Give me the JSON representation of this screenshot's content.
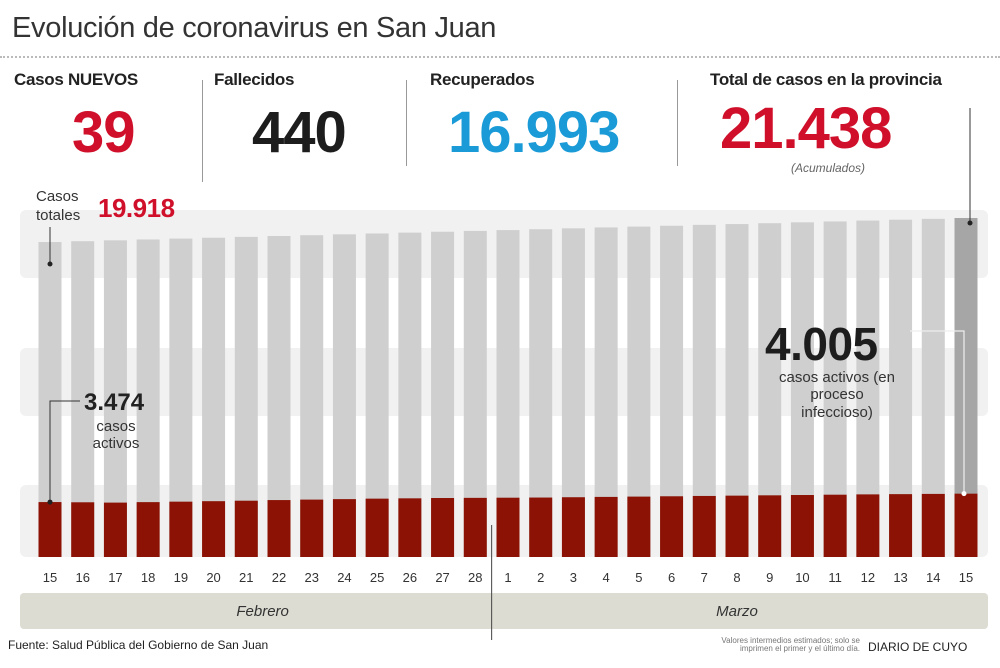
{
  "title": "Evolución de coronavirus en San Juan",
  "stats": {
    "nuevos": {
      "label": "Casos NUEVOS",
      "value": "39"
    },
    "fallecidos": {
      "label": "Fallecidos",
      "value": "440"
    },
    "recuperados": {
      "label": "Recuperados",
      "value": "16.993"
    },
    "total": {
      "label": "Total de casos en la provincia",
      "value": "21.438",
      "note": "(Acumulados)"
    }
  },
  "colors": {
    "red": "#d0102a",
    "blue": "#1a9bd7",
    "dark": "#222222",
    "active": "#8b1204",
    "total_bar": "#cfcfcf",
    "total_bar_last": "#a6a6a6",
    "month_band": "#dcdcd3"
  },
  "annotations": {
    "casos_totales_label": "Casos totales",
    "casos_totales_value": "19.918",
    "first_active_value": "3.474",
    "first_active_label": "casos activos",
    "last_active_value": "4.005",
    "last_active_label": "casos activos (en proceso infeccioso)"
  },
  "footer": {
    "source": "Fuente: Salud Pública del Gobierno de San Juan",
    "brand": "DIARIO DE CUYO"
  },
  "estimate_note": "Valores intermedios estimados; solo se imprimen el primer y el último día.",
  "chart_data": {
    "type": "bar",
    "stacked": "overlay",
    "categories": [
      "15",
      "16",
      "17",
      "18",
      "19",
      "20",
      "21",
      "22",
      "23",
      "24",
      "25",
      "26",
      "27",
      "28",
      "1",
      "2",
      "3",
      "4",
      "5",
      "6",
      "7",
      "8",
      "9",
      "10",
      "11",
      "12",
      "13",
      "14",
      "15"
    ],
    "months": [
      {
        "name": "Febrero",
        "from": 0,
        "to": 13
      },
      {
        "name": "Marzo",
        "from": 14,
        "to": 28
      }
    ],
    "series": [
      {
        "name": "Casos totales",
        "values": [
          19918,
          19970,
          20025,
          20080,
          20135,
          20190,
          20245,
          20300,
          20350,
          20405,
          20460,
          20515,
          20570,
          20620,
          20675,
          20730,
          20785,
          20840,
          20895,
          20950,
          21005,
          21055,
          21110,
          21165,
          21220,
          21275,
          21330,
          21385,
          21438
        ]
      },
      {
        "name": "casos activos",
        "values": [
          3474,
          3460,
          3440,
          3470,
          3500,
          3530,
          3560,
          3600,
          3630,
          3660,
          3690,
          3710,
          3730,
          3740,
          3750,
          3760,
          3780,
          3800,
          3820,
          3840,
          3860,
          3880,
          3900,
          3920,
          3940,
          3960,
          3975,
          3990,
          4005
        ]
      }
    ],
    "values_estimated": "Only the first and last values are printed; the intermediate values are estimates.",
    "ylim": [
      0,
      21438
    ],
    "grid": false,
    "legend": "none"
  }
}
